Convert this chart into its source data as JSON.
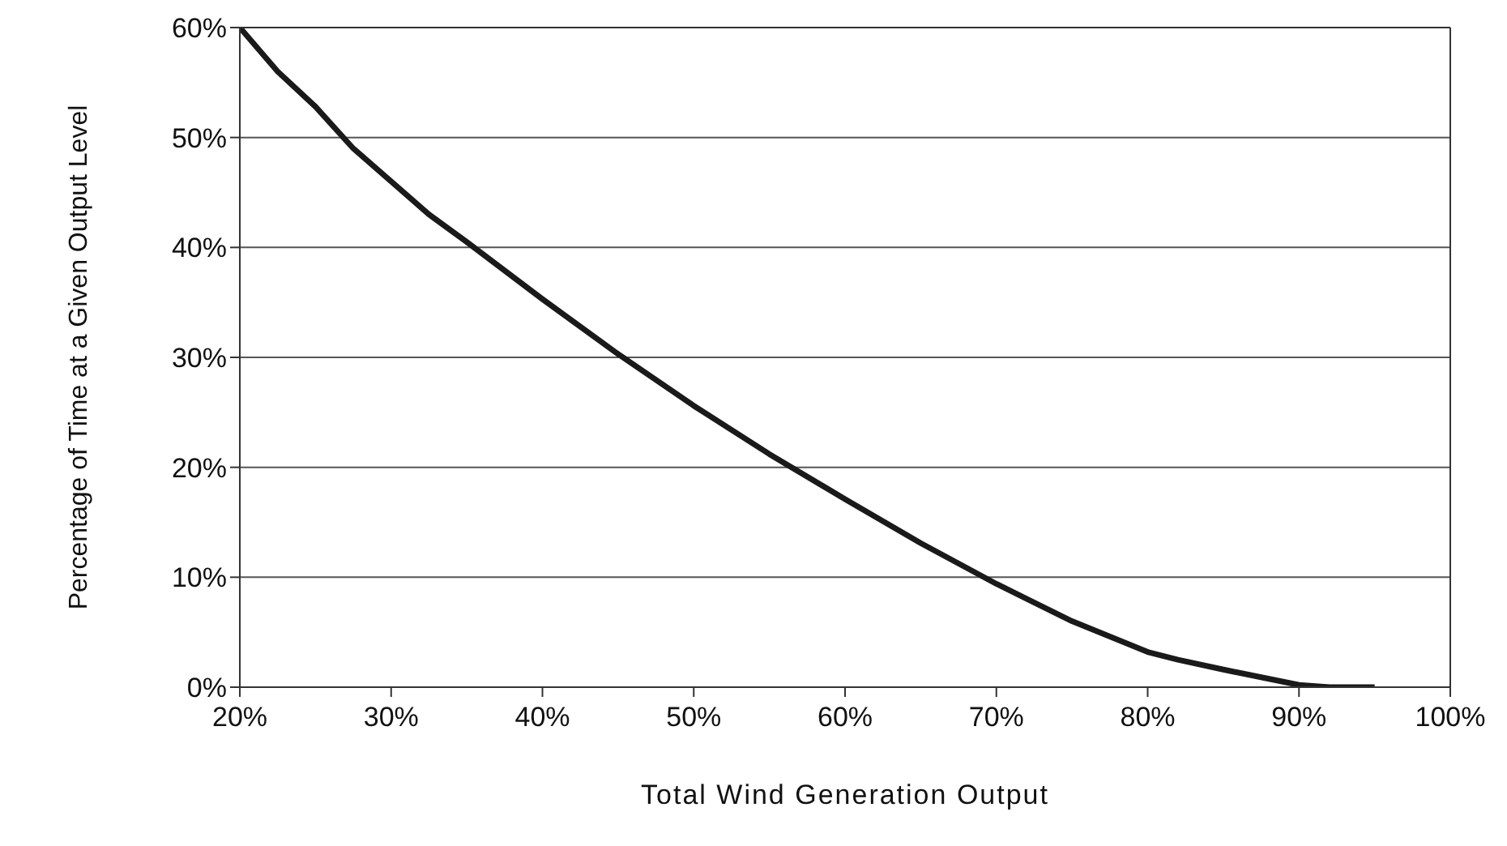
{
  "chart_data": {
    "type": "line",
    "xlabel": "Total Wind Generation Output",
    "ylabel": "Percentage of Time at a Given Output Level",
    "x": [
      20,
      22.5,
      25,
      27.5,
      30,
      32.5,
      35,
      40,
      45,
      50,
      55,
      60,
      65,
      70,
      75,
      80,
      82,
      85,
      87.5,
      90,
      92,
      95
    ],
    "series": [
      {
        "color": "#1a1a1a",
        "values": [
          60,
          56,
          52.8,
          49,
          46,
          43,
          40.5,
          35.3,
          30.3,
          25.6,
          21.2,
          17.1,
          13.1,
          9.4,
          6,
          3.2,
          2.5,
          1.6,
          0.9,
          0.2,
          0,
          0
        ]
      }
    ],
    "xlim": [
      20,
      100
    ],
    "xticks": [
      {
        "value": 20,
        "label": "20%"
      },
      {
        "value": 30,
        "label": "30%"
      },
      {
        "value": 40,
        "label": "40%"
      },
      {
        "value": 50,
        "label": "50%"
      },
      {
        "value": 60,
        "label": "60%"
      },
      {
        "value": 70,
        "label": "70%"
      },
      {
        "value": 80,
        "label": "80%"
      },
      {
        "value": 90,
        "label": "90%"
      },
      {
        "value": 100,
        "label": "100%"
      }
    ],
    "ylim": [
      0,
      60
    ],
    "yticks": [
      {
        "value": 0,
        "label": "0%"
      },
      {
        "value": 10,
        "label": "10%"
      },
      {
        "value": 20,
        "label": "20%"
      },
      {
        "value": 30,
        "label": "30%"
      },
      {
        "value": 40,
        "label": "40%"
      },
      {
        "value": 50,
        "label": "50%"
      },
      {
        "value": 60,
        "label": "60%"
      }
    ],
    "grid": "y",
    "marker": "none",
    "line_style": "solid",
    "legend": false
  }
}
